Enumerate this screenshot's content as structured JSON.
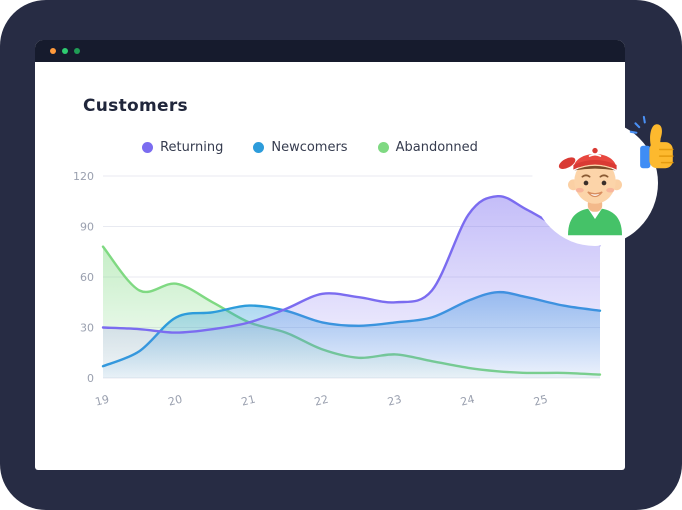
{
  "colors": {
    "background": "#272c44",
    "titlebar": "#161b2d",
    "grid": "#e8eaf1",
    "tick_text": "#9aa0af",
    "sparkle": "#4a90f4"
  },
  "window": {
    "dots": [
      "#ff9a3c",
      "#2ecc71",
      "#1f9d55"
    ]
  },
  "decor": {
    "avatar_icon": "boy-with-red-cap-avatar",
    "reaction_icon": "thumbs-up-emoji",
    "sparkle_icon": "blue-sparkle"
  },
  "chart_data": {
    "type": "area",
    "title": "Customers",
    "x": [
      19,
      19.5,
      20,
      20.5,
      21,
      21.5,
      22,
      22.5,
      23,
      23.5,
      24,
      24.4,
      24.8,
      25.3,
      25.8
    ],
    "series": [
      {
        "name": "Returning",
        "color": "#7b6cf0",
        "values": [
          30,
          29,
          27,
          29,
          33,
          41,
          50,
          48,
          45,
          52,
          97,
          108,
          100,
          88,
          79
        ]
      },
      {
        "name": "Newcomers",
        "color": "#2d9cdb",
        "values": [
          7,
          16,
          36,
          39,
          43,
          40,
          33,
          31,
          33,
          36,
          46,
          51,
          48,
          43,
          40
        ]
      },
      {
        "name": "Abandonned",
        "color": "#7fd982",
        "values": [
          78,
          52,
          56,
          45,
          33,
          27,
          17,
          12,
          14,
          10,
          6,
          4,
          3,
          3,
          2
        ]
      }
    ],
    "xticks": [
      19,
      20,
      21,
      22,
      23,
      24,
      25
    ],
    "yticks": [
      0,
      30,
      60,
      90,
      120
    ],
    "xlim": [
      19,
      25.8
    ],
    "ylim": [
      0,
      120
    ],
    "grid": "horizontal",
    "legend_position": "top"
  }
}
